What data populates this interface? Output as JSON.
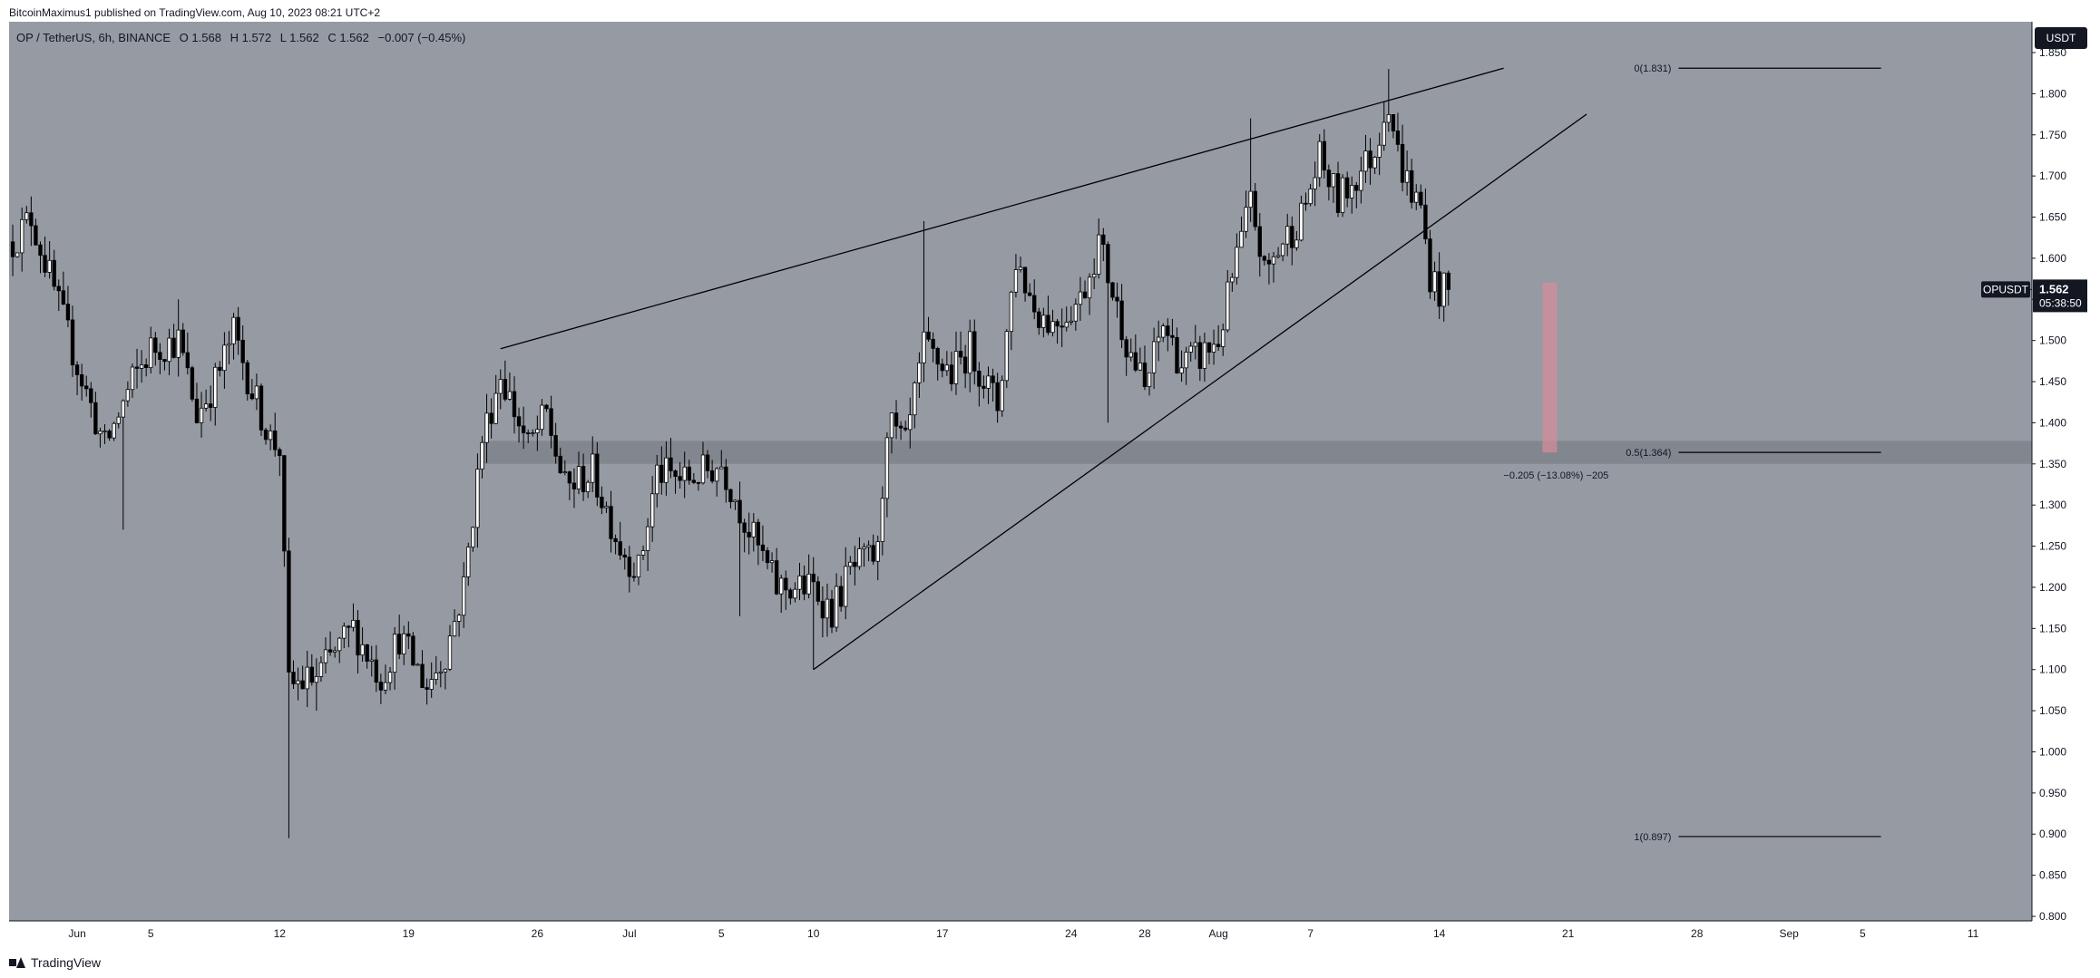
{
  "header": {
    "published": "BitcoinMaximus1 published on TradingView.com, Aug 10, 2023 08:21 UTC+2"
  },
  "legend": {
    "symbol": "OP / TetherUS, 6h, BINANCE",
    "o_label": "O",
    "o": "1.568",
    "h_label": "H",
    "h": "1.572",
    "l_label": "L",
    "l": "1.562",
    "c_label": "C",
    "c": "1.562",
    "change": "−0.007 (−0.45%)"
  },
  "currency_button": "USDT",
  "price_tag": {
    "ticker": "OPUSDT",
    "price": "1.562",
    "countdown": "05:38:50"
  },
  "footer": {
    "brand": "TradingView"
  },
  "chart_data": {
    "type": "candlestick",
    "ylim": [
      0.8,
      1.85
    ],
    "y_ticks": [
      "1.850",
      "1.800",
      "1.750",
      "1.700",
      "1.650",
      "1.600",
      "1.550",
      "1.500",
      "1.450",
      "1.400",
      "1.350",
      "1.300",
      "1.250",
      "1.200",
      "1.150",
      "1.100",
      "1.050",
      "1.000",
      "0.950",
      "0.900",
      "0.850",
      "0.800"
    ],
    "x_tick_labels": [
      "Jun",
      "5",
      "12",
      "19",
      "26",
      "Jul",
      "5",
      "10",
      "17",
      "24",
      "28",
      "Aug",
      "7",
      "14",
      "21",
      "28",
      "Sep",
      "5",
      "11"
    ],
    "x_tick_days": [
      0,
      4,
      11,
      18,
      25,
      30,
      35,
      40,
      47,
      54,
      58,
      62,
      67,
      74,
      81,
      88,
      93,
      97,
      103
    ],
    "x_range_days": [
      -3.7,
      106.2
    ],
    "last_price": 1.562,
    "key_points": [
      {
        "day": -3.5,
        "price": 1.62
      },
      {
        "day": -2.5,
        "price": 1.65
      },
      {
        "day": 0,
        "price": 1.47
      },
      {
        "day": 1.5,
        "price": 1.37
      },
      {
        "day": 3,
        "price": 1.45
      },
      {
        "day": 4,
        "price": 1.49
      },
      {
        "day": 5.5,
        "price": 1.5
      },
      {
        "day": 6.5,
        "price": 1.41
      },
      {
        "day": 7.5,
        "price": 1.45
      },
      {
        "day": 8.5,
        "price": 1.51
      },
      {
        "day": 9.5,
        "price": 1.44
      },
      {
        "day": 10.5,
        "price": 1.38
      },
      {
        "day": 11,
        "price": 1.37
      },
      {
        "day": 11.5,
        "price": 1.08
      },
      {
        "day": 13,
        "price": 1.09
      },
      {
        "day": 15,
        "price": 1.15
      },
      {
        "day": 16.5,
        "price": 1.09
      },
      {
        "day": 17.5,
        "price": 1.14
      },
      {
        "day": 19,
        "price": 1.08
      },
      {
        "day": 20,
        "price": 1.12
      },
      {
        "day": 21,
        "price": 1.2
      },
      {
        "day": 22,
        "price": 1.38
      },
      {
        "day": 23,
        "price": 1.46
      },
      {
        "day": 24.5,
        "price": 1.37
      },
      {
        "day": 25.5,
        "price": 1.41
      },
      {
        "day": 26.5,
        "price": 1.32
      },
      {
        "day": 28,
        "price": 1.34
      },
      {
        "day": 29.5,
        "price": 1.25
      },
      {
        "day": 30.5,
        "price": 1.22
      },
      {
        "day": 31.5,
        "price": 1.34
      },
      {
        "day": 33,
        "price": 1.33
      },
      {
        "day": 35,
        "price": 1.35
      },
      {
        "day": 36.5,
        "price": 1.27
      },
      {
        "day": 38,
        "price": 1.2
      },
      {
        "day": 40,
        "price": 1.2
      },
      {
        "day": 41,
        "price": 1.17
      },
      {
        "day": 42,
        "price": 1.22
      },
      {
        "day": 43.5,
        "price": 1.24
      },
      {
        "day": 44,
        "price": 1.4
      },
      {
        "day": 45,
        "price": 1.37
      },
      {
        "day": 46,
        "price": 1.49
      },
      {
        "day": 47.5,
        "price": 1.46
      },
      {
        "day": 48.5,
        "price": 1.49
      },
      {
        "day": 50,
        "price": 1.42
      },
      {
        "day": 51,
        "price": 1.6
      },
      {
        "day": 52,
        "price": 1.54
      },
      {
        "day": 53,
        "price": 1.52
      },
      {
        "day": 54.5,
        "price": 1.55
      },
      {
        "day": 55.5,
        "price": 1.62
      },
      {
        "day": 57,
        "price": 1.5
      },
      {
        "day": 58,
        "price": 1.44
      },
      {
        "day": 59,
        "price": 1.52
      },
      {
        "day": 60,
        "price": 1.47
      },
      {
        "day": 61,
        "price": 1.48
      },
      {
        "day": 62,
        "price": 1.5
      },
      {
        "day": 63,
        "price": 1.6
      },
      {
        "day": 63.8,
        "price": 1.67
      },
      {
        "day": 64.5,
        "price": 1.58
      },
      {
        "day": 65.5,
        "price": 1.62
      },
      {
        "day": 66.5,
        "price": 1.65
      },
      {
        "day": 67.5,
        "price": 1.72
      },
      {
        "day": 68.5,
        "price": 1.67
      },
      {
        "day": 69.5,
        "price": 1.7
      },
      {
        "day": 70.5,
        "price": 1.73
      },
      {
        "day": 71.2,
        "price": 1.8
      },
      {
        "day": 71.8,
        "price": 1.72
      },
      {
        "day": 72.5,
        "price": 1.68
      },
      {
        "day": 73,
        "price": 1.66
      },
      {
        "day": 73.5,
        "price": 1.58
      },
      {
        "day": 74,
        "price": 1.56
      },
      {
        "day": 74.6,
        "price": 1.562
      }
    ],
    "drawings": {
      "rising_wedge_upper": [
        {
          "day": 23,
          "price": 1.49
        },
        {
          "day": 77.5,
          "price": 1.831
        }
      ],
      "rising_wedge_lower": [
        {
          "day": 40,
          "price": 1.1
        },
        {
          "day": 82,
          "price": 1.775
        }
      ],
      "horizontal_zone": {
        "from_day": 22,
        "to_day": 106.2,
        "low": 1.35,
        "high": 1.378
      },
      "measure_bar": {
        "day": 80,
        "top": 1.57,
        "bottom": 1.364,
        "color": "#d98b9a",
        "label": "−0.205 (−13.08%) −205"
      },
      "fib_levels": [
        {
          "label": "0(1.831)",
          "price": 1.831
        },
        {
          "label": "0.5(1.364)",
          "price": 1.364
        },
        {
          "label": "1(0.897)",
          "price": 0.897
        }
      ],
      "fib_from_day": 87,
      "fib_to_day": 98
    }
  }
}
